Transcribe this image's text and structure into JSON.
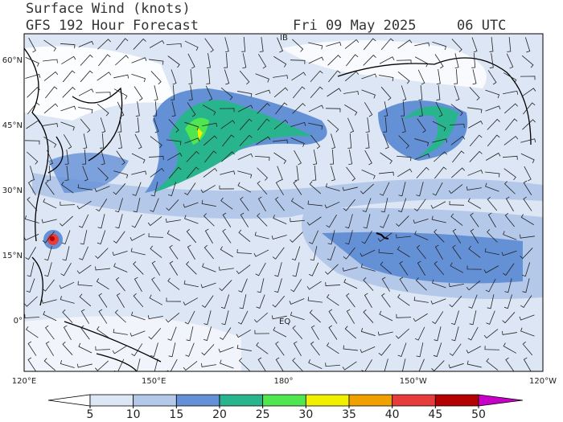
{
  "header": {
    "title": "Surface Wind (knots)",
    "model": "GFS 192 Hour Forecast",
    "date": "Fri 09 May 2025",
    "time": "06 UTC"
  },
  "map": {
    "lat_labels": [
      "60°N",
      "45°N",
      "30°N",
      "15°N",
      "0°"
    ],
    "lon_labels": [
      "120°E",
      "150°E",
      "180°",
      "150°W",
      "120°W"
    ],
    "marks": {
      "date_line": "IB",
      "equator": "EQ"
    }
  },
  "colorbar": {
    "ticks": [
      5,
      10,
      15,
      20,
      25,
      30,
      35,
      40,
      45,
      50
    ],
    "colors": [
      "#ffffff",
      "#dce6f4",
      "#b4c8ea",
      "#6490d6",
      "#28b48c",
      "#50e650",
      "#f0f000",
      "#f0a000",
      "#e63c3c",
      "#b40000",
      "#c800c8"
    ]
  }
}
